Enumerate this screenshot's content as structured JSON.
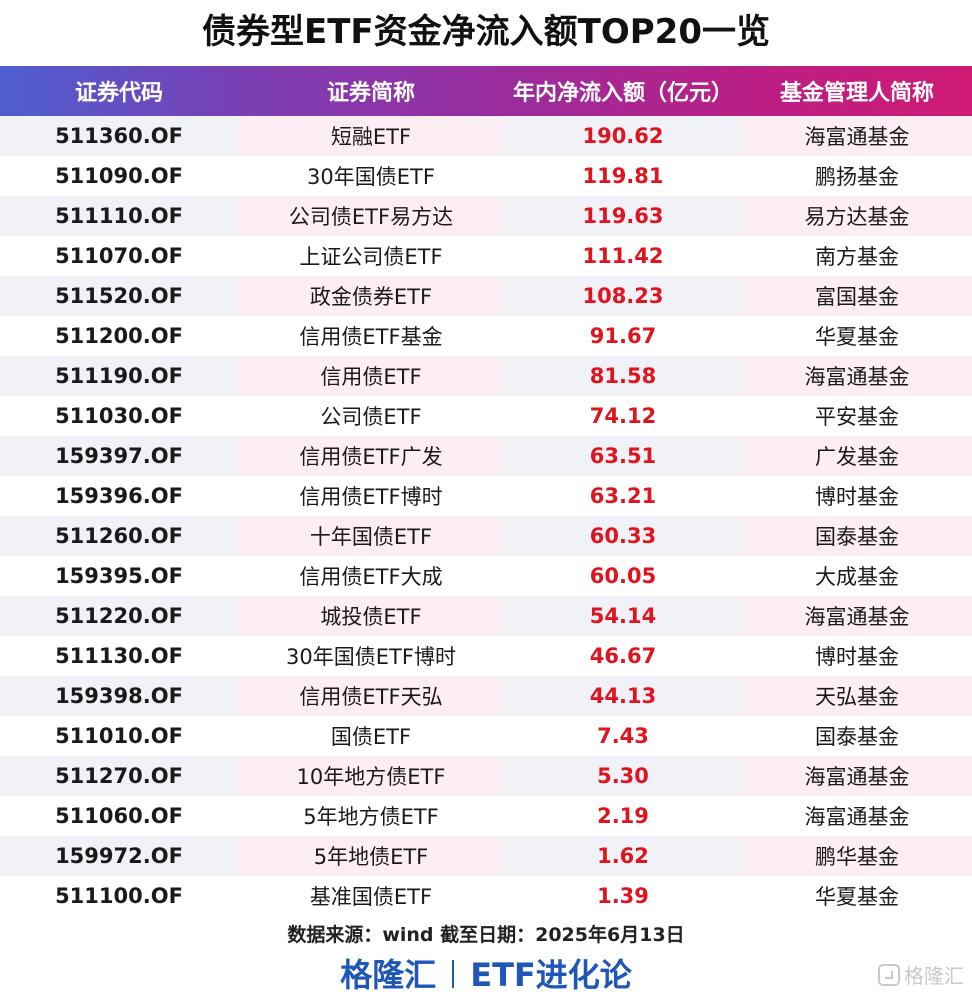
{
  "title": "债券型ETF资金净流入额TOP20一览",
  "columns": [
    "证券代码",
    "证券简称",
    "年内净流入额（亿元）",
    "基金管理人简称"
  ],
  "rows": [
    {
      "code": "511360.OF",
      "name": "短融ETF",
      "flow": "190.62",
      "manager": "海富通基金"
    },
    {
      "code": "511090.OF",
      "name": "30年国债ETF",
      "flow": "119.81",
      "manager": "鹏扬基金"
    },
    {
      "code": "511110.OF",
      "name": "公司债ETF易方达",
      "flow": "119.63",
      "manager": "易方达基金"
    },
    {
      "code": "511070.OF",
      "name": "上证公司债ETF",
      "flow": "111.42",
      "manager": "南方基金"
    },
    {
      "code": "511520.OF",
      "name": "政金债券ETF",
      "flow": "108.23",
      "manager": "富国基金"
    },
    {
      "code": "511200.OF",
      "name": "信用债ETF基金",
      "flow": "91.67",
      "manager": "华夏基金"
    },
    {
      "code": "511190.OF",
      "name": "信用债ETF",
      "flow": "81.58",
      "manager": "海富通基金"
    },
    {
      "code": "511030.OF",
      "name": "公司债ETF",
      "flow": "74.12",
      "manager": "平安基金"
    },
    {
      "code": "159397.OF",
      "name": "信用债ETF广发",
      "flow": "63.51",
      "manager": "广发基金"
    },
    {
      "code": "159396.OF",
      "name": "信用债ETF博时",
      "flow": "63.21",
      "manager": "博时基金"
    },
    {
      "code": "511260.OF",
      "name": "十年国债ETF",
      "flow": "60.33",
      "manager": "国泰基金"
    },
    {
      "code": "159395.OF",
      "name": "信用债ETF大成",
      "flow": "60.05",
      "manager": "大成基金"
    },
    {
      "code": "511220.OF",
      "name": "城投债ETF",
      "flow": "54.14",
      "manager": "海富通基金"
    },
    {
      "code": "511130.OF",
      "name": "30年国债ETF博时",
      "flow": "46.67",
      "manager": "博时基金"
    },
    {
      "code": "159398.OF",
      "name": "信用债ETF天弘",
      "flow": "44.13",
      "manager": "天弘基金"
    },
    {
      "code": "511010.OF",
      "name": "国债ETF",
      "flow": "7.43",
      "manager": "国泰基金"
    },
    {
      "code": "511270.OF",
      "name": "10年地方债ETF",
      "flow": "5.30",
      "manager": "海富通基金"
    },
    {
      "code": "511060.OF",
      "name": "5年地方债ETF",
      "flow": "2.19",
      "manager": "海富通基金"
    },
    {
      "code": "159972.OF",
      "name": "5年地债ETF",
      "flow": "1.62",
      "manager": "鹏华基金"
    },
    {
      "code": "511100.OF",
      "name": "基准国债ETF",
      "flow": "1.39",
      "manager": "华夏基金"
    }
  ],
  "source_note": "数据来源：wind   截至日期：2025年6月13日",
  "brand_left": "格隆汇",
  "brand_right": "ETF进化论",
  "watermark": "格隆汇",
  "colors": {
    "flow_text": "#e0141e",
    "brand": "#1f57b8",
    "header_start": "#4d5fd0",
    "header_end": "#cf1a74"
  }
}
